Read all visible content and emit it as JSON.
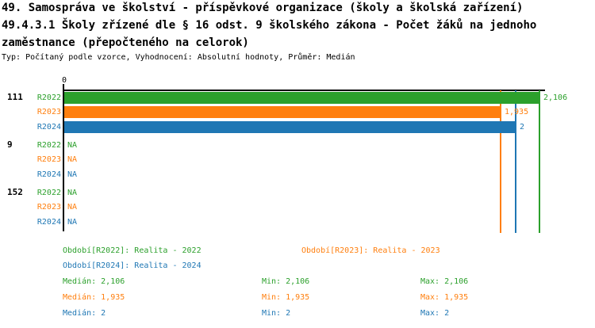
{
  "header": {
    "title_lines": [
      "49. Samospráva ve školství - příspěvkové organizace (školy a školská zařízení)",
      "49.4.3.1 Školy zřízené dle § 16 odst. 9 školského zákona - Počet žáků na jednoho",
      "zaměstnance (přepočteného na celorok)"
    ],
    "subtitle": "Typ: Počítaný podle vzorce, Vyhodnocení: Absolutní hodnoty, Průměr: Medián"
  },
  "colors": {
    "R2022": "#2ca02c",
    "R2023": "#ff7f0e",
    "R2024": "#1f77b4",
    "axis": "#000000",
    "background": "#ffffff"
  },
  "chart_data": {
    "type": "bar",
    "orientation": "horizontal",
    "x_axis": {
      "zero_label": "0",
      "xlim": [
        0,
        2.35
      ],
      "grid": false
    },
    "series_names": [
      "R2022",
      "R2023",
      "R2024"
    ],
    "na_text": "NA",
    "groups": [
      {
        "label": "111",
        "bars": [
          {
            "series": "R2022",
            "value": 2.106,
            "label": "2,106"
          },
          {
            "series": "R2023",
            "value": 1.935,
            "label": "1,935"
          },
          {
            "series": "R2024",
            "value": 2,
            "label": "2"
          }
        ]
      },
      {
        "label": "9",
        "bars": [
          {
            "series": "R2022",
            "value": null,
            "label": "NA"
          },
          {
            "series": "R2023",
            "value": null,
            "label": "NA"
          },
          {
            "series": "R2024",
            "value": null,
            "label": "NA"
          }
        ]
      },
      {
        "label": "152",
        "bars": [
          {
            "series": "R2022",
            "value": null,
            "label": "NA"
          },
          {
            "series": "R2023",
            "value": null,
            "label": "NA"
          },
          {
            "series": "R2024",
            "value": null,
            "label": "NA"
          }
        ]
      }
    ],
    "median_lines": [
      {
        "series": "R2022",
        "value": 2.106
      },
      {
        "series": "R2023",
        "value": 1.935
      },
      {
        "series": "R2024",
        "value": 2
      }
    ]
  },
  "legend": {
    "periods": [
      {
        "series": "R2022",
        "text": "Období[R2022]: Realita - 2022"
      },
      {
        "series": "R2023",
        "text": "Období[R2023]: Realita - 2023"
      },
      {
        "series": "R2024",
        "text": "Období[R2024]: Realita - 2024"
      }
    ],
    "stats": [
      {
        "series": "R2022",
        "median": "Medián: 2,106",
        "min": "Min: 2,106",
        "max": "Max: 2,106"
      },
      {
        "series": "R2023",
        "median": "Medián: 1,935",
        "min": "Min: 1,935",
        "max": "Max: 1,935"
      },
      {
        "series": "R2024",
        "median": "Medián: 2",
        "min": "Min: 2",
        "max": "Max: 2"
      }
    ]
  }
}
